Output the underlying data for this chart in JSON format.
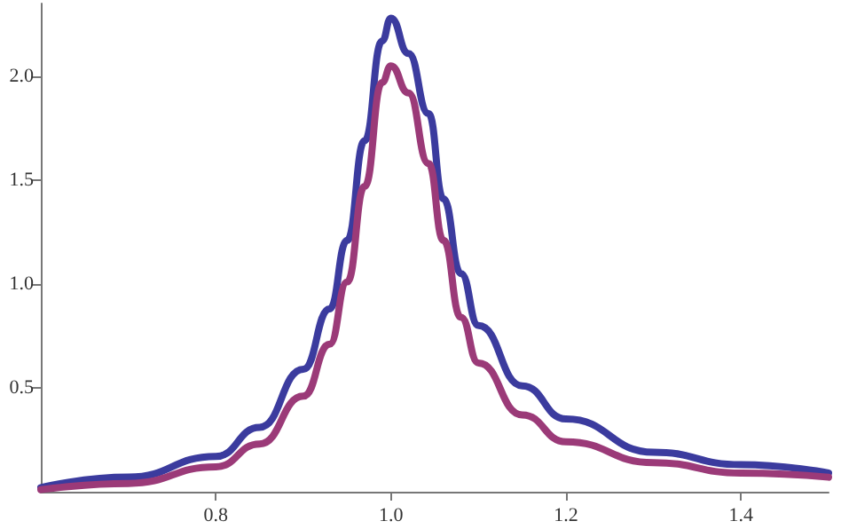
{
  "chart_data": {
    "type": "line",
    "xlim": [
      0.6,
      1.5
    ],
    "ylim": [
      0,
      2.35
    ],
    "xticks": [
      0.8,
      {
        "value": 1,
        "label": "1.0"
      },
      1.2,
      1.4
    ],
    "yticks": [
      0.5,
      {
        "value": 1,
        "label": "1.0"
      },
      1.5,
      {
        "value": 2,
        "label": "2.0"
      }
    ],
    "grid": false,
    "marker": "none",
    "line_style": "solid",
    "series": [
      {
        "color": "#3b3b9e",
        "x": [
          0.6,
          0.7,
          0.8,
          0.85,
          0.9,
          0.93,
          0.95,
          0.97,
          0.99,
          1.0,
          1.02,
          1.043,
          1.06,
          1.08,
          1.1,
          1.15,
          1.2,
          1.3,
          1.4,
          1.5
        ],
        "values": [
          0.02,
          0.07,
          0.17,
          0.31,
          0.59,
          0.88,
          1.21,
          1.69,
          2.17,
          2.28,
          2.11,
          1.82,
          1.41,
          1.05,
          0.8,
          0.51,
          0.35,
          0.19,
          0.13,
          0.09
        ]
      },
      {
        "color": "#9b3a78",
        "x": [
          0.6,
          0.7,
          0.8,
          0.85,
          0.9,
          0.93,
          0.95,
          0.97,
          0.99,
          1.0,
          1.02,
          1.043,
          1.06,
          1.08,
          1.1,
          1.15,
          1.2,
          1.3,
          1.4,
          1.5
        ],
        "values": [
          0.01,
          0.04,
          0.12,
          0.23,
          0.46,
          0.71,
          1.01,
          1.47,
          1.97,
          2.05,
          1.92,
          1.58,
          1.21,
          0.84,
          0.62,
          0.37,
          0.24,
          0.14,
          0.09,
          0.07
        ]
      }
    ]
  }
}
